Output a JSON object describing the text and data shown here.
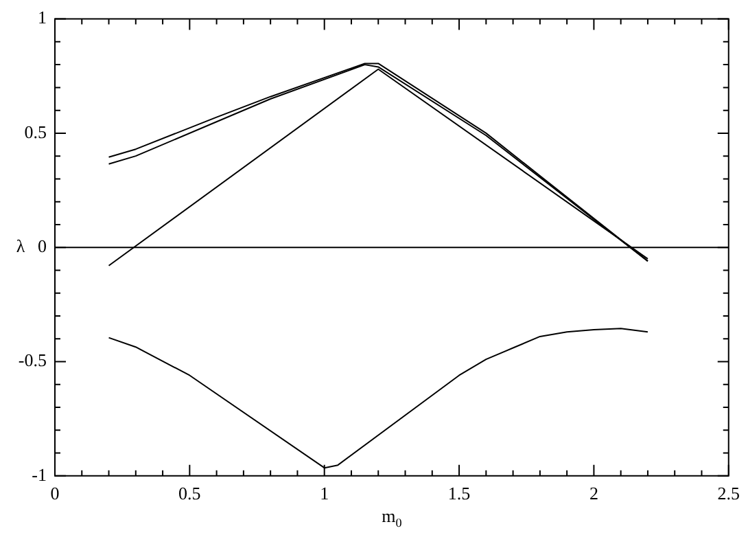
{
  "chart_data": {
    "type": "line",
    "xlabel": "m$_{0}$",
    "ylabel": "λ",
    "xlim": [
      0,
      2.5
    ],
    "ylim": [
      -1,
      1
    ],
    "xticks": [
      0,
      {
        "value": 0.1,
        "label": null
      },
      {
        "value": 0.2,
        "label": null
      },
      {
        "value": 0.3,
        "label": null
      },
      {
        "value": 0.4,
        "label": null
      },
      0.5,
      {
        "value": 0.6,
        "label": null
      },
      {
        "value": 0.7,
        "label": null
      },
      {
        "value": 0.8,
        "label": null
      },
      {
        "value": 0.9,
        "label": null
      },
      1,
      {
        "value": 1.1,
        "label": null
      },
      {
        "value": 1.2,
        "label": null
      },
      {
        "value": 1.3,
        "label": null
      },
      {
        "value": 1.4,
        "label": null
      },
      1.5,
      {
        "value": 1.6,
        "label": null
      },
      {
        "value": 1.7,
        "label": null
      },
      {
        "value": 1.8,
        "label": null
      },
      {
        "value": 1.9,
        "label": null
      },
      2,
      {
        "value": 2.1,
        "label": null
      },
      {
        "value": 2.2,
        "label": null
      },
      {
        "value": 2.3,
        "label": null
      },
      {
        "value": 2.4,
        "label": null
      },
      2.5
    ],
    "yticks": [
      -1,
      {
        "value": -0.9,
        "label": null
      },
      {
        "value": -0.8,
        "label": null
      },
      {
        "value": -0.7,
        "label": null
      },
      {
        "value": -0.6,
        "label": null
      },
      -0.5,
      {
        "value": -0.4,
        "label": null
      },
      {
        "value": -0.3,
        "label": null
      },
      {
        "value": -0.2,
        "label": null
      },
      {
        "value": -0.1,
        "label": null
      },
      0,
      {
        "value": 0.1,
        "label": null
      },
      {
        "value": 0.2,
        "label": null
      },
      {
        "value": 0.3,
        "label": null
      },
      {
        "value": 0.4,
        "label": null
      },
      0.5,
      {
        "value": 0.6,
        "label": null
      },
      {
        "value": 0.7,
        "label": null
      },
      {
        "value": 0.8,
        "label": null
      },
      {
        "value": 0.9,
        "label": null
      },
      1
    ],
    "grid": false,
    "legend": false,
    "marker": "none",
    "line_style": "solid",
    "ref_lines": [
      {
        "axis": "y",
        "value": 0,
        "color": "#000000"
      }
    ],
    "series": [
      {
        "color": "#000000",
        "x": [
          0.2,
          0.3,
          0.6,
          0.8,
          1.15,
          1.2,
          1.6,
          2.2
        ],
        "values": [
          0.395,
          0.43,
          0.57,
          0.66,
          0.805,
          0.805,
          0.5,
          -0.06
        ]
      },
      {
        "color": "#000000",
        "x": [
          0.2,
          0.3,
          0.6,
          0.8,
          1.15,
          1.2,
          1.6,
          2.2
        ],
        "values": [
          0.365,
          0.4,
          0.55,
          0.65,
          0.8,
          0.79,
          0.49,
          -0.06
        ]
      },
      {
        "color": "#000000",
        "x": [
          0.2,
          1.2,
          2.2
        ],
        "values": [
          -0.08,
          0.78,
          -0.05
        ]
      },
      {
        "color": "#000000",
        "x": [
          0.2,
          0.3,
          0.5,
          1.0,
          1.05,
          1.5,
          1.6,
          1.7,
          1.8,
          1.9,
          2.0,
          2.1,
          2.2
        ],
        "values": [
          -0.395,
          -0.436,
          -0.56,
          -0.965,
          -0.953,
          -0.56,
          -0.49,
          -0.44,
          -0.39,
          -0.37,
          -0.36,
          -0.355,
          -0.37
        ]
      }
    ]
  }
}
